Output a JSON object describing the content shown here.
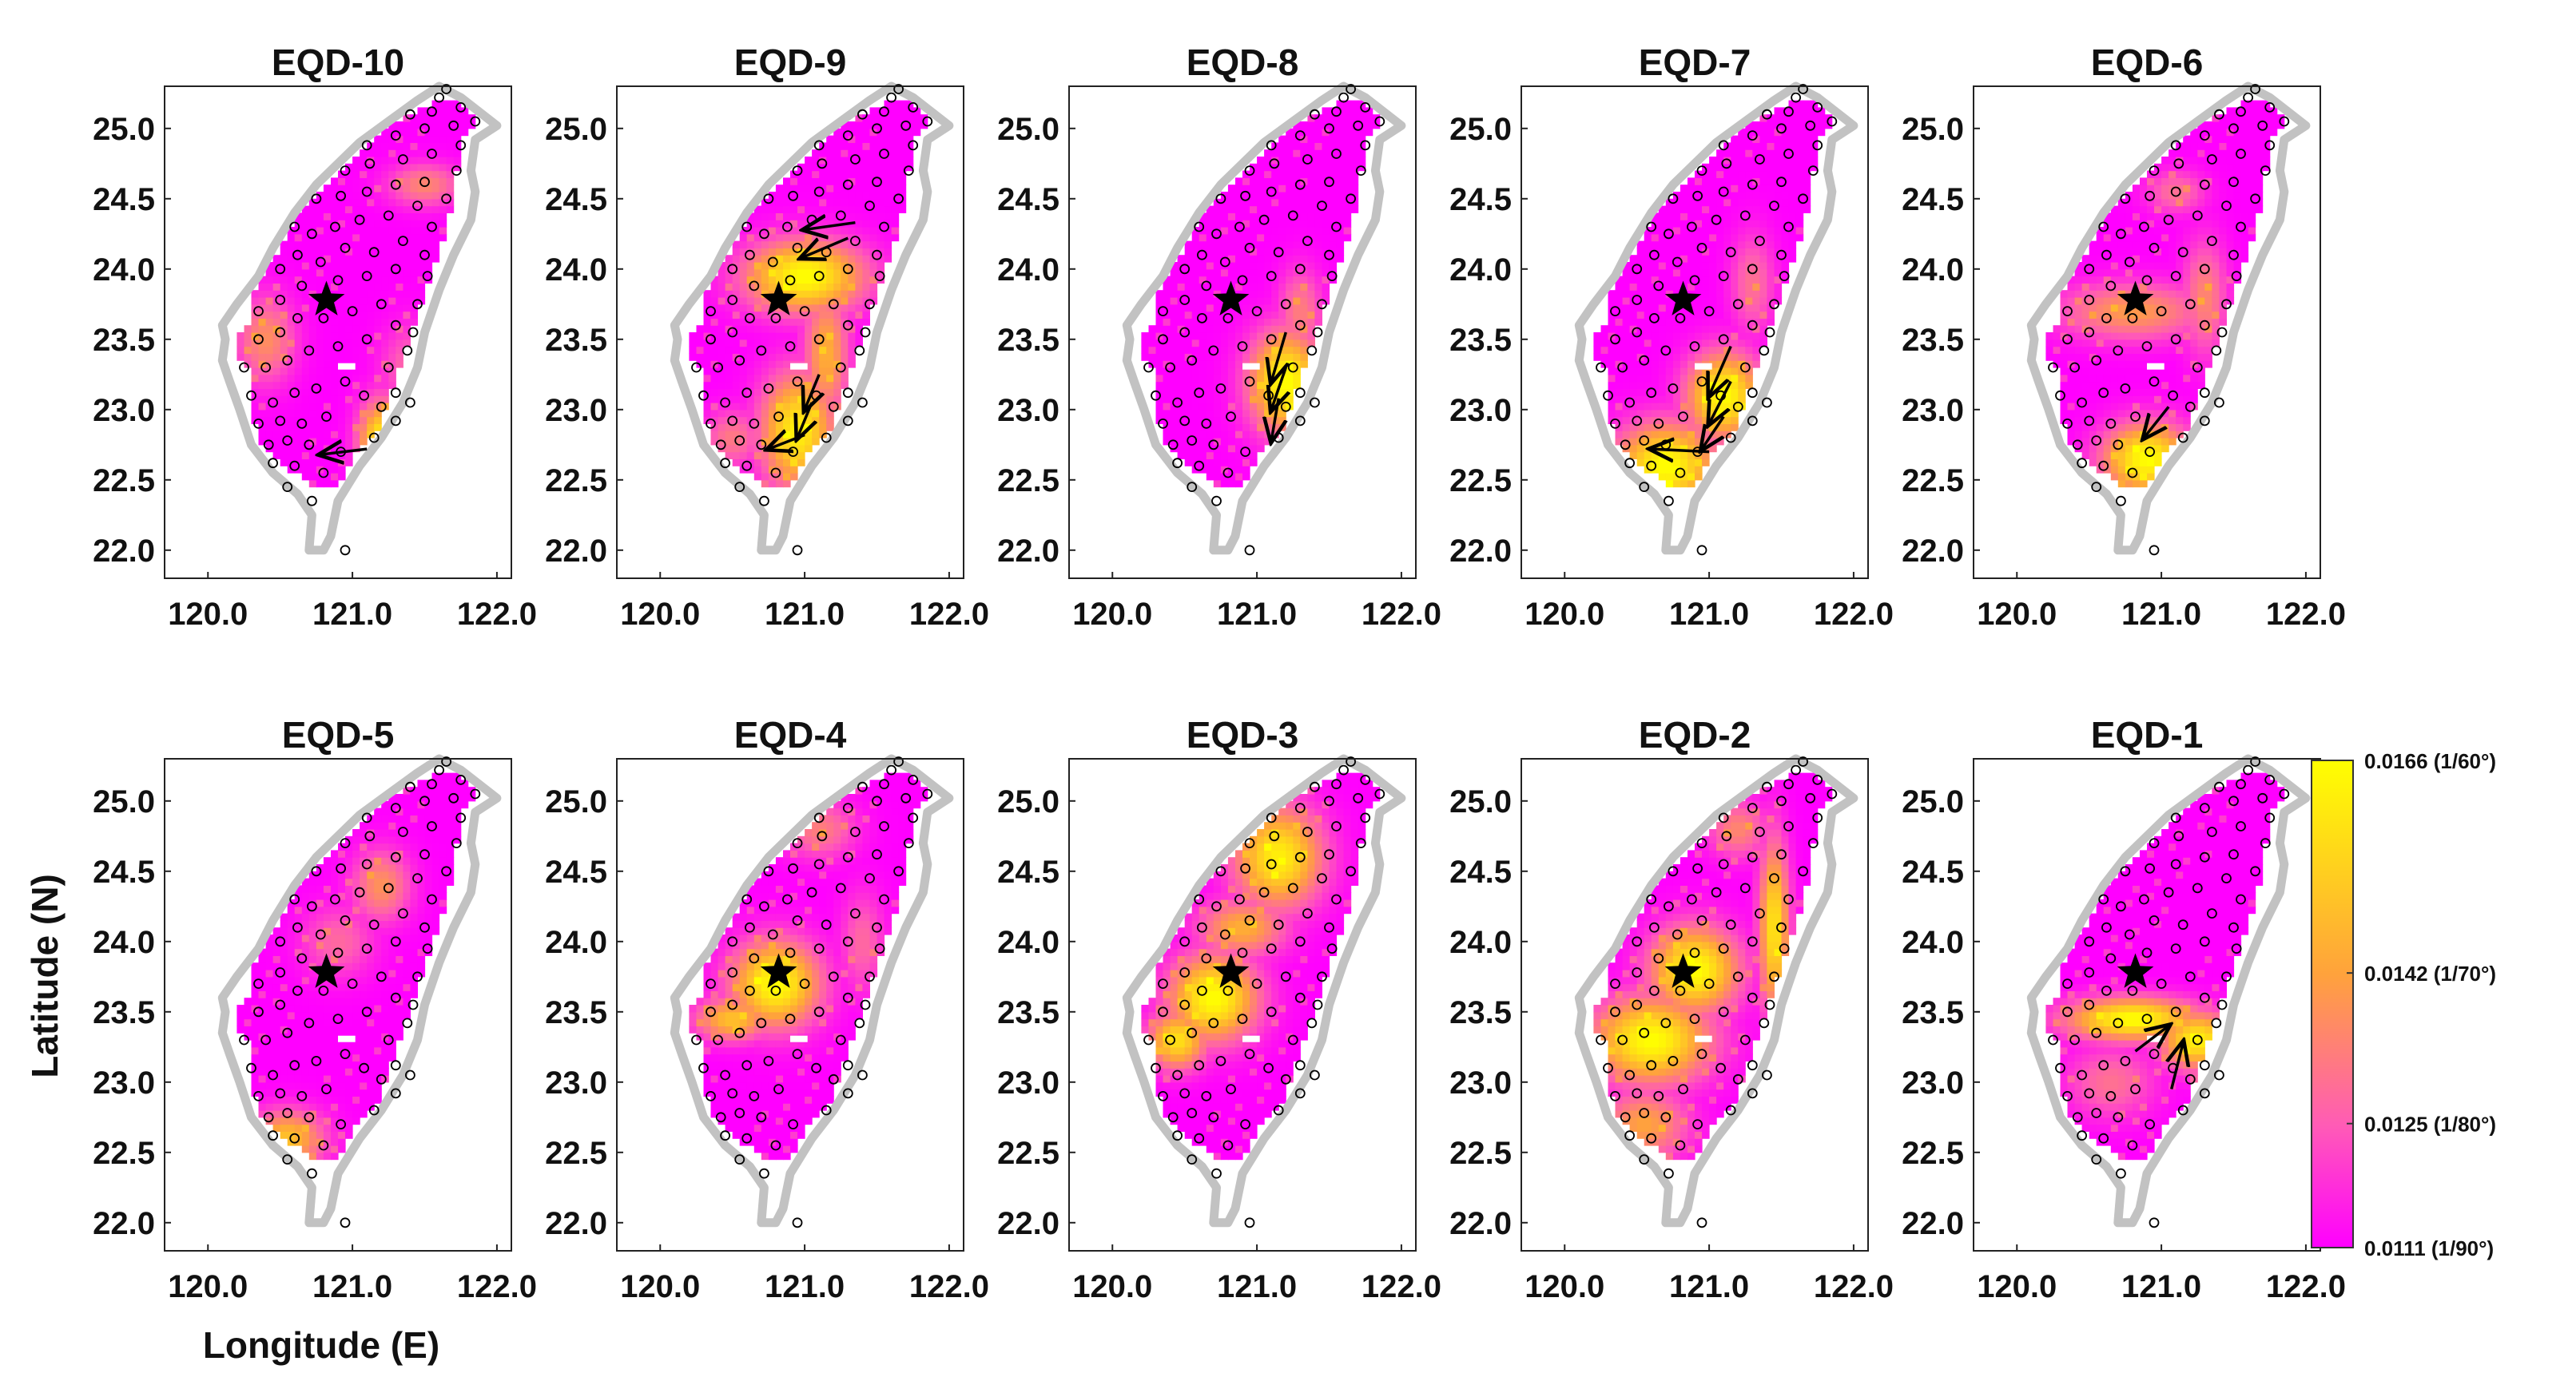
{
  "chart_data": {
    "type": "heatmap",
    "layout": "2 rows x 5 columns small multiples",
    "xlabel": "Longitude (E)",
    "ylabel": "Latitude (N)",
    "xlim": [
      119.7,
      122.1
    ],
    "ylim": [
      21.8,
      25.3
    ],
    "xticks": [
      "120.0",
      "121.0",
      "122.0"
    ],
    "yticks": [
      "25.0",
      "24.5",
      "24.0",
      "23.5",
      "23.0",
      "22.5",
      "22.0"
    ],
    "xtick_values": [
      120.0,
      121.0,
      122.0
    ],
    "ytick_values": [
      25.0,
      24.5,
      24.0,
      23.5,
      23.0,
      22.5,
      22.0
    ],
    "epicenter": [
      120.82,
      23.78
    ],
    "colorbar": {
      "min": 0.0111,
      "max": 0.0166,
      "colors": [
        "#ff00ff",
        "#ff5bb6",
        "#ffa23c",
        "#ffff00"
      ],
      "ticks": [
        {
          "value": 0.0166,
          "label": "0.0166 (1/60°)"
        },
        {
          "value": 0.0142,
          "label": "0.0142 (1/70°)"
        },
        {
          "value": 0.0125,
          "label": "0.0125 (1/80°)"
        },
        {
          "value": 0.0111,
          "label": "0.0111 (1/90°)"
        }
      ]
    },
    "panels": [
      {
        "title": "EQD-10",
        "hotspots": [
          {
            "lon": 121.2,
            "lat": 22.75,
            "rx": 0.15,
            "ry": 0.3,
            "v": 0.0166
          },
          {
            "lon": 120.4,
            "lat": 23.5,
            "rx": 0.2,
            "ry": 0.3,
            "v": 0.0137
          },
          {
            "lon": 121.5,
            "lat": 24.6,
            "rx": 0.25,
            "ry": 0.15,
            "v": 0.0135
          },
          {
            "lon": 121.4,
            "lat": 23.3,
            "rx": 0.2,
            "ry": 0.3,
            "v": 0.0128
          }
        ],
        "arrows": [
          {
            "from": [
              121.1,
              22.72
            ],
            "to": [
              120.78,
              22.68
            ]
          }
        ]
      },
      {
        "title": "EQD-9",
        "hotspots": [
          {
            "lon": 121.0,
            "lat": 23.95,
            "rx": 0.4,
            "ry": 0.25,
            "v": 0.0166
          },
          {
            "lon": 120.95,
            "lat": 22.85,
            "rx": 0.25,
            "ry": 0.4,
            "v": 0.0162
          },
          {
            "lon": 121.15,
            "lat": 23.4,
            "rx": 0.15,
            "ry": 0.45,
            "v": 0.0145
          },
          {
            "lon": 120.5,
            "lat": 22.8,
            "rx": 0.2,
            "ry": 0.2,
            "v": 0.0132
          }
        ],
        "arrows": [
          {
            "from": [
              121.35,
              24.33
            ],
            "to": [
              121.0,
              24.28
            ]
          },
          {
            "from": [
              121.3,
              24.22
            ],
            "to": [
              120.98,
              24.08
            ]
          },
          {
            "from": [
              121.1,
              23.25
            ],
            "to": [
              121.0,
              23.0
            ]
          },
          {
            "from": [
              121.05,
              23.05
            ],
            "to": [
              120.95,
              22.8
            ]
          },
          {
            "from": [
              121.0,
              22.82
            ],
            "to": [
              120.75,
              22.72
            ]
          }
        ]
      },
      {
        "title": "EQD-8",
        "hotspots": [
          {
            "lon": 121.2,
            "lat": 23.2,
            "rx": 0.25,
            "ry": 0.35,
            "v": 0.0166
          },
          {
            "lon": 121.3,
            "lat": 23.7,
            "rx": 0.15,
            "ry": 0.3,
            "v": 0.0133
          }
        ],
        "arrows": [
          {
            "from": [
              121.2,
              23.55
            ],
            "to": [
              121.1,
              23.2
            ]
          },
          {
            "from": [
              121.2,
              23.3
            ],
            "to": [
              121.1,
              23.0
            ]
          },
          {
            "from": [
              121.15,
              23.08
            ],
            "to": [
              121.1,
              22.78
            ]
          }
        ]
      },
      {
        "title": "EQD-7",
        "hotspots": [
          {
            "lon": 120.7,
            "lat": 22.6,
            "rx": 0.35,
            "ry": 0.3,
            "v": 0.0166
          },
          {
            "lon": 121.1,
            "lat": 23.1,
            "rx": 0.25,
            "ry": 0.3,
            "v": 0.0166
          },
          {
            "lon": 121.3,
            "lat": 23.9,
            "rx": 0.15,
            "ry": 0.35,
            "v": 0.013
          }
        ],
        "arrows": [
          {
            "from": [
              121.15,
              23.45
            ],
            "to": [
              121.0,
              23.1
            ]
          },
          {
            "from": [
              121.15,
              23.2
            ],
            "to": [
              121.0,
              22.9
            ]
          },
          {
            "from": [
              121.1,
              22.95
            ],
            "to": [
              120.95,
              22.72
            ]
          },
          {
            "from": [
              121.0,
              22.7
            ],
            "to": [
              120.6,
              22.72
            ]
          }
        ]
      },
      {
        "title": "EQD-6",
        "hotspots": [
          {
            "lon": 120.9,
            "lat": 22.65,
            "rx": 0.3,
            "ry": 0.25,
            "v": 0.0166
          },
          {
            "lon": 120.8,
            "lat": 23.7,
            "rx": 0.5,
            "ry": 0.2,
            "v": 0.014
          },
          {
            "lon": 121.3,
            "lat": 23.8,
            "rx": 0.15,
            "ry": 0.4,
            "v": 0.0135
          },
          {
            "lon": 121.1,
            "lat": 24.55,
            "rx": 0.2,
            "ry": 0.15,
            "v": 0.013
          }
        ],
        "arrows": [
          {
            "from": [
              121.05,
              23.02
            ],
            "to": [
              120.88,
              22.8
            ]
          }
        ]
      },
      {
        "title": "EQD-5",
        "hotspots": [
          {
            "lon": 120.55,
            "lat": 22.6,
            "rx": 0.25,
            "ry": 0.2,
            "v": 0.015
          },
          {
            "lon": 121.2,
            "lat": 24.4,
            "rx": 0.2,
            "ry": 0.25,
            "v": 0.0138
          },
          {
            "lon": 120.9,
            "lat": 24.0,
            "rx": 0.25,
            "ry": 0.25,
            "v": 0.0128
          }
        ],
        "arrows": []
      },
      {
        "title": "EQD-4",
        "hotspots": [
          {
            "lon": 120.8,
            "lat": 23.7,
            "rx": 0.3,
            "ry": 0.3,
            "v": 0.0166
          },
          {
            "lon": 120.5,
            "lat": 23.45,
            "rx": 0.25,
            "ry": 0.15,
            "v": 0.015
          },
          {
            "lon": 121.1,
            "lat": 24.8,
            "rx": 0.25,
            "ry": 0.2,
            "v": 0.0133
          },
          {
            "lon": 121.4,
            "lat": 24.0,
            "rx": 0.15,
            "ry": 0.35,
            "v": 0.0128
          }
        ],
        "arrows": []
      },
      {
        "title": "EQD-3",
        "hotspots": [
          {
            "lon": 121.15,
            "lat": 24.6,
            "rx": 0.3,
            "ry": 0.35,
            "v": 0.0162
          },
          {
            "lon": 120.7,
            "lat": 23.6,
            "rx": 0.3,
            "ry": 0.3,
            "v": 0.0166
          },
          {
            "lon": 120.45,
            "lat": 23.3,
            "rx": 0.2,
            "ry": 0.2,
            "v": 0.0158
          },
          {
            "lon": 120.9,
            "lat": 24.1,
            "rx": 0.3,
            "ry": 0.2,
            "v": 0.0145
          }
        ],
        "arrows": []
      },
      {
        "title": "EQD-2",
        "hotspots": [
          {
            "lon": 120.6,
            "lat": 23.3,
            "rx": 0.4,
            "ry": 0.3,
            "v": 0.0166
          },
          {
            "lon": 120.9,
            "lat": 23.8,
            "rx": 0.3,
            "ry": 0.3,
            "v": 0.0166
          },
          {
            "lon": 121.45,
            "lat": 24.1,
            "rx": 0.1,
            "ry": 0.6,
            "v": 0.016
          },
          {
            "lon": 120.55,
            "lat": 22.7,
            "rx": 0.3,
            "ry": 0.25,
            "v": 0.0142
          },
          {
            "lon": 121.2,
            "lat": 24.8,
            "rx": 0.2,
            "ry": 0.2,
            "v": 0.0135
          }
        ],
        "arrows": []
      },
      {
        "title": "EQD-1",
        "hotspots": [
          {
            "lon": 120.8,
            "lat": 23.45,
            "rx": 0.45,
            "ry": 0.15,
            "v": 0.0166
          },
          {
            "lon": 121.25,
            "lat": 23.3,
            "rx": 0.25,
            "ry": 0.2,
            "v": 0.0162
          },
          {
            "lon": 120.65,
            "lat": 23.0,
            "rx": 0.3,
            "ry": 0.25,
            "v": 0.013
          }
        ],
        "arrows": [
          {
            "from": [
              120.82,
              23.22
            ],
            "to": [
              121.05,
              23.4
            ]
          },
          {
            "from": [
              121.07,
              22.95
            ],
            "to": [
              121.15,
              23.28
            ]
          }
        ]
      }
    ],
    "coastline": [
      [
        120.7,
        22.0
      ],
      [
        120.72,
        22.25
      ],
      [
        120.62,
        22.4
      ],
      [
        120.45,
        22.55
      ],
      [
        120.3,
        22.75
      ],
      [
        120.22,
        23.0
      ],
      [
        120.15,
        23.2
      ],
      [
        120.1,
        23.35
      ],
      [
        120.12,
        23.5
      ],
      [
        120.1,
        23.6
      ],
      [
        120.2,
        23.75
      ],
      [
        120.35,
        23.95
      ],
      [
        120.45,
        24.15
      ],
      [
        120.6,
        24.4
      ],
      [
        120.75,
        24.6
      ],
      [
        120.9,
        24.75
      ],
      [
        121.05,
        24.9
      ],
      [
        121.25,
        25.05
      ],
      [
        121.45,
        25.2
      ],
      [
        121.6,
        25.3
      ],
      [
        121.75,
        25.22
      ],
      [
        121.9,
        25.1
      ],
      [
        122.0,
        25.02
      ],
      [
        121.85,
        24.92
      ],
      [
        121.82,
        24.7
      ],
      [
        121.85,
        24.55
      ],
      [
        121.82,
        24.35
      ],
      [
        121.7,
        24.1
      ],
      [
        121.6,
        23.85
      ],
      [
        121.5,
        23.55
      ],
      [
        121.45,
        23.3
      ],
      [
        121.35,
        23.05
      ],
      [
        121.2,
        22.8
      ],
      [
        121.05,
        22.6
      ],
      [
        120.9,
        22.35
      ],
      [
        120.85,
        22.1
      ],
      [
        120.8,
        22.0
      ],
      [
        120.7,
        22.0
      ]
    ],
    "data_boundary": [
      [
        120.7,
        22.45
      ],
      [
        120.62,
        22.55
      ],
      [
        120.5,
        22.6
      ],
      [
        120.38,
        22.75
      ],
      [
        120.3,
        23.0
      ],
      [
        120.3,
        23.3
      ],
      [
        120.18,
        23.35
      ],
      [
        120.18,
        23.55
      ],
      [
        120.3,
        23.6
      ],
      [
        120.3,
        23.8
      ],
      [
        120.4,
        24.0
      ],
      [
        120.5,
        24.15
      ],
      [
        120.6,
        24.35
      ],
      [
        120.75,
        24.55
      ],
      [
        120.9,
        24.7
      ],
      [
        121.05,
        24.85
      ],
      [
        121.2,
        25.0
      ],
      [
        121.4,
        25.1
      ],
      [
        121.55,
        25.18
      ],
      [
        121.75,
        25.18
      ],
      [
        121.85,
        25.05
      ],
      [
        121.75,
        24.9
      ],
      [
        121.72,
        24.65
      ],
      [
        121.68,
        24.4
      ],
      [
        121.6,
        24.1
      ],
      [
        121.5,
        23.85
      ],
      [
        121.42,
        23.6
      ],
      [
        121.35,
        23.35
      ],
      [
        121.25,
        23.1
      ],
      [
        121.2,
        22.9
      ],
      [
        121.05,
        22.75
      ],
      [
        120.95,
        22.55
      ],
      [
        120.85,
        22.45
      ],
      [
        120.7,
        22.45
      ]
    ],
    "stations": [
      [
        120.72,
        22.35
      ],
      [
        120.95,
        22.0
      ],
      [
        120.55,
        22.45
      ],
      [
        120.45,
        22.62
      ],
      [
        120.6,
        22.6
      ],
      [
        120.8,
        22.55
      ],
      [
        120.42,
        22.75
      ],
      [
        120.55,
        22.78
      ],
      [
        120.7,
        22.75
      ],
      [
        120.92,
        22.7
      ],
      [
        121.15,
        22.8
      ],
      [
        121.3,
        22.92
      ],
      [
        121.2,
        23.02
      ],
      [
        121.4,
        23.05
      ],
      [
        121.3,
        23.12
      ],
      [
        121.08,
        23.1
      ],
      [
        120.35,
        22.9
      ],
      [
        120.5,
        22.92
      ],
      [
        120.65,
        22.9
      ],
      [
        120.82,
        22.95
      ],
      [
        120.3,
        23.1
      ],
      [
        120.45,
        23.05
      ],
      [
        120.6,
        23.12
      ],
      [
        120.75,
        23.15
      ],
      [
        120.95,
        23.2
      ],
      [
        121.25,
        23.3
      ],
      [
        121.38,
        23.42
      ],
      [
        121.42,
        23.55
      ],
      [
        120.25,
        23.3
      ],
      [
        120.4,
        23.3
      ],
      [
        120.55,
        23.35
      ],
      [
        120.7,
        23.42
      ],
      [
        120.9,
        23.45
      ],
      [
        121.1,
        23.5
      ],
      [
        121.3,
        23.6
      ],
      [
        120.35,
        23.5
      ],
      [
        120.5,
        23.55
      ],
      [
        120.62,
        23.65
      ],
      [
        120.8,
        23.65
      ],
      [
        121.0,
        23.7
      ],
      [
        121.2,
        23.75
      ],
      [
        121.45,
        23.75
      ],
      [
        121.52,
        23.95
      ],
      [
        120.35,
        23.7
      ],
      [
        120.5,
        23.78
      ],
      [
        120.65,
        23.88
      ],
      [
        120.9,
        23.92
      ],
      [
        121.1,
        23.95
      ],
      [
        121.3,
        24.0
      ],
      [
        121.5,
        24.1
      ],
      [
        120.5,
        24.0
      ],
      [
        120.62,
        24.1
      ],
      [
        120.78,
        24.05
      ],
      [
        120.95,
        24.15
      ],
      [
        121.15,
        24.12
      ],
      [
        121.35,
        24.2
      ],
      [
        121.55,
        24.3
      ],
      [
        120.6,
        24.3
      ],
      [
        120.72,
        24.25
      ],
      [
        120.88,
        24.3
      ],
      [
        121.05,
        24.35
      ],
      [
        121.25,
        24.38
      ],
      [
        121.45,
        24.45
      ],
      [
        121.65,
        24.5
      ],
      [
        120.75,
        24.5
      ],
      [
        120.92,
        24.52
      ],
      [
        121.1,
        24.55
      ],
      [
        121.3,
        24.6
      ],
      [
        121.5,
        24.62
      ],
      [
        121.72,
        24.7
      ],
      [
        120.95,
        24.7
      ],
      [
        121.12,
        24.75
      ],
      [
        121.35,
        24.78
      ],
      [
        121.55,
        24.82
      ],
      [
        121.75,
        24.88
      ],
      [
        121.1,
        24.88
      ],
      [
        121.3,
        24.95
      ],
      [
        121.5,
        25.0
      ],
      [
        121.7,
        25.02
      ],
      [
        121.4,
        25.1
      ],
      [
        121.55,
        25.12
      ],
      [
        121.6,
        25.22
      ],
      [
        121.75,
        25.15
      ],
      [
        121.85,
        25.05
      ],
      [
        121.65,
        25.28
      ]
    ]
  }
}
